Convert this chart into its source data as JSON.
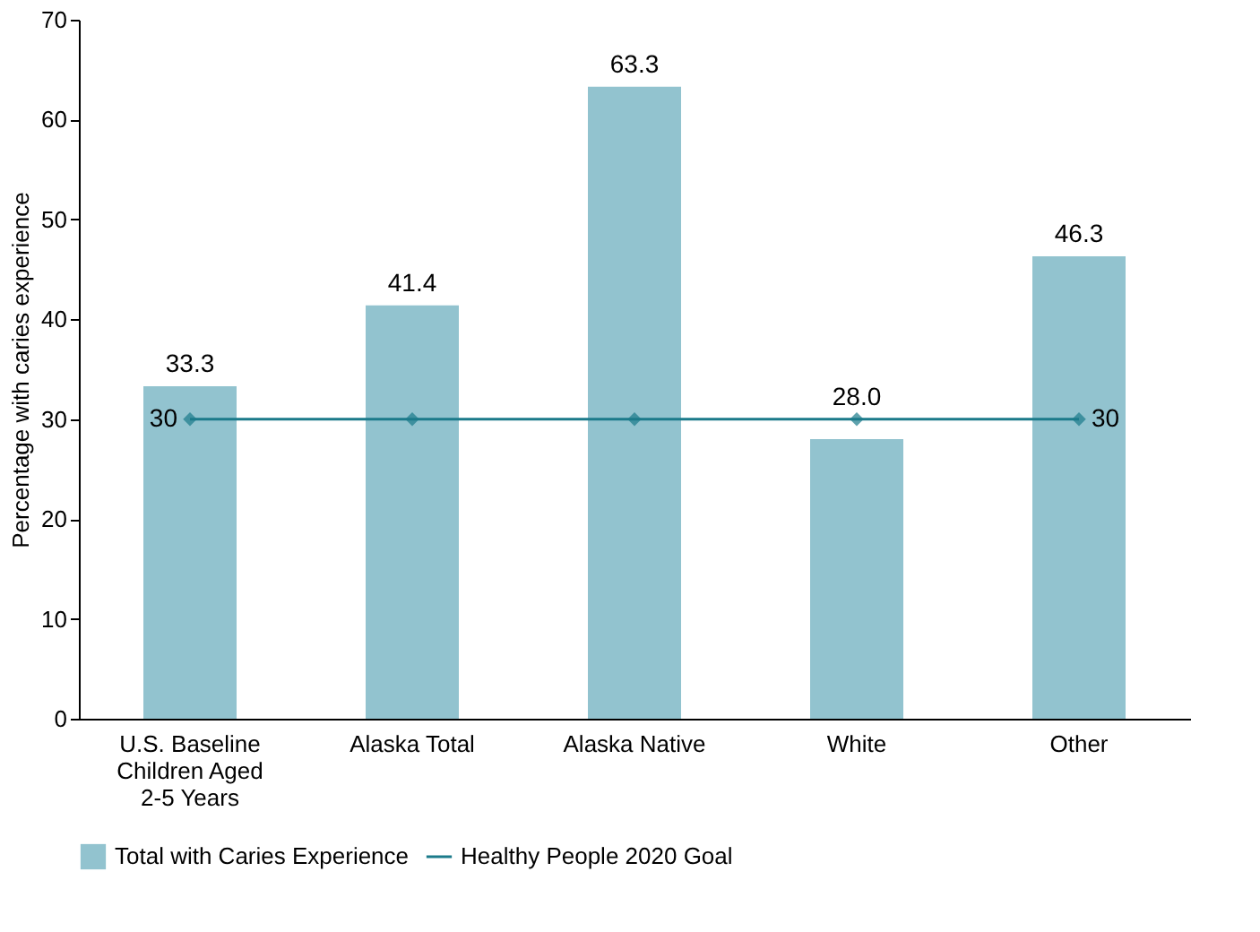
{
  "chart_data": {
    "type": "bar",
    "categories": [
      "U.S. Baseline Children Aged 2-5 Years",
      "Alaska Total",
      "Alaska Native",
      "White",
      "Other"
    ],
    "ylabel": "Percentage with caries experience",
    "ylim": [
      0,
      70
    ],
    "yticks": [
      0,
      10,
      20,
      30,
      40,
      50,
      60,
      70
    ],
    "grid": false,
    "legend": "bottom",
    "series": [
      {
        "name": "Total with Caries Experience",
        "color": "#92c3cf",
        "values": [
          33.3,
          41.4,
          63.3,
          28.0,
          46.3
        ],
        "value_labels": [
          "33.3",
          "41.4",
          "63.3",
          "28.0",
          "46.3"
        ]
      },
      {
        "name": "Healthy People 2020 Goal",
        "type": "line",
        "color": "#1b7a8a",
        "marker": "diamond",
        "values": [
          30,
          30,
          30,
          30,
          30
        ],
        "value_labels": [
          "30",
          null,
          null,
          null,
          "30"
        ]
      }
    ]
  }
}
